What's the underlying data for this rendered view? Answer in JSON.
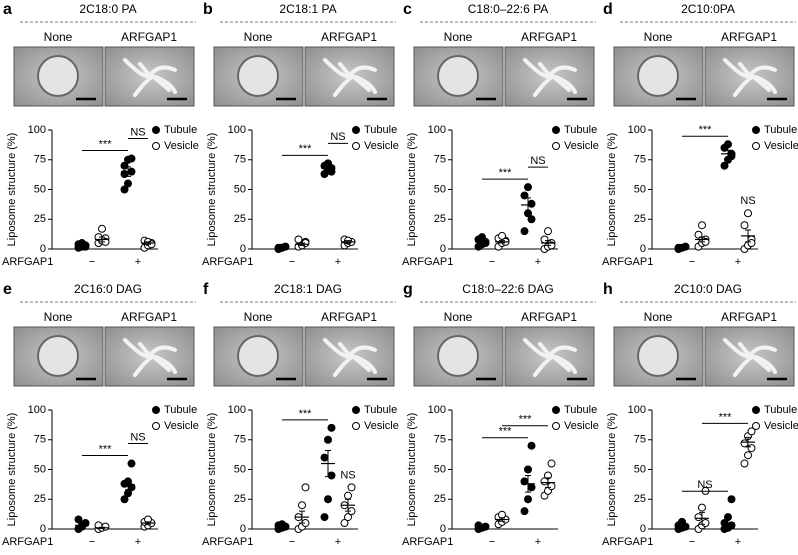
{
  "chart_data": [
    {
      "type": "strip",
      "letter": "a",
      "title": "2C18:0 PA",
      "images": [
        "None",
        "ARFGAP1"
      ],
      "ylabel": "Liposome structure (%)",
      "xlabel": "ARFGAP1",
      "categories": [
        "−",
        "+"
      ],
      "ylim": [
        0,
        100
      ],
      "yticks": [
        0,
        25,
        50,
        75,
        100
      ],
      "legend": "upper right",
      "series": [
        {
          "name": "Tubule",
          "color": "#000000",
          "marker": "filled",
          "values": [
            [
              1,
              2,
              3,
              4,
              5,
              2
            ],
            [
              50,
              55,
              65,
              70,
              75,
              76,
              63
            ]
          ],
          "means": [
            3,
            65
          ],
          "errors": [
            1,
            4
          ]
        },
        {
          "name": "Vesicle",
          "color": "#000000",
          "marker": "open",
          "values": [
            [
              5,
              7,
              9,
              10,
              17,
              6
            ],
            [
              1,
              3,
              5,
              7,
              6,
              4
            ]
          ],
          "means": [
            8,
            5
          ],
          "errors": [
            2,
            1
          ]
        }
      ],
      "comparisons": [
        {
          "label": "***",
          "groups": [
            [
              0,
              0
            ],
            [
              1,
              0
            ]
          ]
        },
        {
          "label": "NS",
          "groups": [
            [
              1,
              0
            ],
            [
              1,
              1
            ]
          ]
        }
      ]
    },
    {
      "type": "strip",
      "letter": "b",
      "title": "2C18:1 PA",
      "images": [
        "None",
        "ARFGAP1"
      ],
      "ylabel": "Liposome structure (%)",
      "xlabel": "ARFGAP1",
      "categories": [
        "−",
        "+"
      ],
      "ylim": [
        0,
        100
      ],
      "yticks": [
        0,
        25,
        50,
        75,
        100
      ],
      "legend": "upper right",
      "series": [
        {
          "name": "Tubule",
          "color": "#000000",
          "marker": "filled",
          "values": [
            [
              0,
              1,
              2,
              1,
              1
            ],
            [
              63,
              66,
              68,
              70,
              72,
              65
            ]
          ],
          "means": [
            1,
            68
          ],
          "errors": [
            0.5,
            1.5
          ]
        },
        {
          "name": "Vesicle",
          "color": "#000000",
          "marker": "open",
          "values": [
            [
              2,
              4,
              6,
              8,
              3,
              5
            ],
            [
              3,
              5,
              6,
              8,
              7
            ]
          ],
          "means": [
            4,
            6
          ],
          "errors": [
            1,
            1
          ]
        }
      ],
      "comparisons": [
        {
          "label": "***",
          "groups": [
            [
              0,
              0
            ],
            [
              1,
              0
            ]
          ]
        },
        {
          "label": "NS",
          "groups": [
            [
              1,
              0
            ],
            [
              1,
              1
            ]
          ]
        }
      ]
    },
    {
      "type": "strip",
      "letter": "c",
      "title": "C18:0–22:6 PA",
      "images": [
        "None",
        "ARFGAP1"
      ],
      "ylabel": "Liposome structure (%)",
      "xlabel": "ARFGAP1",
      "categories": [
        "−",
        "+"
      ],
      "ylim": [
        0,
        100
      ],
      "yticks": [
        0,
        25,
        50,
        75,
        100
      ],
      "legend": "upper right",
      "series": [
        {
          "name": "Tubule",
          "color": "#000000",
          "marker": "filled",
          "values": [
            [
              2,
              4,
              6,
              8,
              10,
              5
            ],
            [
              15,
              30,
              38,
              45,
              52,
              25
            ]
          ],
          "means": [
            6,
            37
          ],
          "errors": [
            1,
            6
          ]
        },
        {
          "name": "Vesicle",
          "color": "#000000",
          "marker": "open",
          "values": [
            [
              2,
              5,
              7,
              9,
              11,
              6
            ],
            [
              0,
              2,
              5,
              8,
              15,
              3
            ]
          ],
          "means": [
            6,
            5
          ],
          "errors": [
            1,
            2
          ]
        }
      ],
      "comparisons": [
        {
          "label": "***",
          "groups": [
            [
              0,
              0
            ],
            [
              1,
              0
            ]
          ]
        },
        {
          "label": "NS",
          "groups": [
            [
              1,
              0
            ],
            [
              1,
              1
            ]
          ]
        }
      ]
    },
    {
      "type": "strip",
      "letter": "d",
      "title": "2C10:0PA",
      "images": [
        "None",
        "ARFGAP1"
      ],
      "ylabel": "Liposome structure (%)",
      "xlabel": "ARFGAP1",
      "categories": [
        "−",
        "+"
      ],
      "ylim": [
        0,
        100
      ],
      "yticks": [
        0,
        25,
        50,
        75,
        100
      ],
      "legend": "upper right",
      "series": [
        {
          "name": "Tubule",
          "color": "#000000",
          "marker": "filled",
          "values": [
            [
              0,
              1,
              2,
              1
            ],
            [
              70,
              75,
              80,
              85,
              88,
              78
            ]
          ],
          "means": [
            1,
            80
          ],
          "errors": [
            0.5,
            3
          ]
        },
        {
          "name": "Vesicle",
          "color": "#000000",
          "marker": "open",
          "values": [
            [
              2,
              5,
              8,
              12,
              20,
              6
            ],
            [
              0,
              3,
              8,
              20,
              30,
              5
            ]
          ],
          "means": [
            8,
            11
          ],
          "errors": [
            2,
            5
          ]
        }
      ],
      "comparisons": [
        {
          "label": "***",
          "groups": [
            [
              0,
              0
            ],
            [
              1,
              0
            ]
          ]
        },
        {
          "label": "NS",
          "groups": [
            [
              1,
              1
            ]
          ]
        }
      ]
    },
    {
      "type": "strip",
      "letter": "e",
      "title": "2C16:0 DAG",
      "images": [
        "None",
        "ARFGAP1"
      ],
      "ylabel": "Liposome structure (%)",
      "xlabel": "ARFGAP1",
      "categories": [
        "−",
        "+"
      ],
      "ylim": [
        0,
        100
      ],
      "yticks": [
        0,
        25,
        50,
        75,
        100
      ],
      "legend": "upper right",
      "series": [
        {
          "name": "Tubule",
          "color": "#000000",
          "marker": "filled",
          "values": [
            [
              0,
              2,
              5,
              8,
              3
            ],
            [
              25,
              30,
              35,
              38,
              40,
              55
            ]
          ],
          "means": [
            3,
            37
          ],
          "errors": [
            1.5,
            4
          ]
        },
        {
          "name": "Vesicle",
          "color": "#000000",
          "marker": "open",
          "values": [
            [
              0,
              1,
              2,
              3
            ],
            [
              2,
              3,
              5,
              6,
              8
            ]
          ],
          "means": [
            1,
            5
          ],
          "errors": [
            0.5,
            1
          ]
        }
      ],
      "comparisons": [
        {
          "label": "***",
          "groups": [
            [
              0,
              0
            ],
            [
              1,
              0
            ]
          ]
        },
        {
          "label": "NS",
          "groups": [
            [
              1,
              0
            ],
            [
              1,
              1
            ]
          ]
        }
      ]
    },
    {
      "type": "strip",
      "letter": "f",
      "title": "2C18:1 DAG",
      "images": [
        "None",
        "ARFGAP1"
      ],
      "ylabel": "Liposome structure (%)",
      "xlabel": "ARFGAP1",
      "categories": [
        "−",
        "+"
      ],
      "ylim": [
        0,
        100
      ],
      "yticks": [
        0,
        25,
        50,
        75,
        100
      ],
      "legend": "upper right",
      "series": [
        {
          "name": "Tubule",
          "color": "#000000",
          "marker": "filled",
          "values": [
            [
              0,
              1,
              2,
              3,
              4
            ],
            [
              10,
              25,
              45,
              60,
              75,
              85
            ]
          ],
          "means": [
            2,
            55
          ],
          "errors": [
            1,
            11
          ]
        },
        {
          "name": "Vesicle",
          "color": "#000000",
          "marker": "open",
          "values": [
            [
              0,
              2,
              5,
              10,
              20,
              35
            ],
            [
              5,
              10,
              15,
              20,
              28,
              35
            ]
          ],
          "means": [
            10,
            20
          ],
          "errors": [
            5,
            5
          ]
        }
      ],
      "comparisons": [
        {
          "label": "***",
          "groups": [
            [
              0,
              0
            ],
            [
              1,
              0
            ]
          ]
        },
        {
          "label": "NS",
          "groups": [
            [
              1,
              1
            ]
          ]
        }
      ]
    },
    {
      "type": "strip",
      "letter": "g",
      "title": "C18:0–22:6 DAG",
      "images": [
        "None",
        "ARFGAP1"
      ],
      "ylabel": "Liposome structure (%)",
      "xlabel": "ARFGAP1",
      "categories": [
        "−",
        "+"
      ],
      "ylim": [
        0,
        100
      ],
      "yticks": [
        0,
        25,
        50,
        75,
        100
      ],
      "legend": "upper right",
      "series": [
        {
          "name": "Tubule",
          "color": "#000000",
          "marker": "filled",
          "values": [
            [
              0,
              1,
              2,
              3
            ],
            [
              15,
              25,
              35,
              40,
              50,
              70
            ]
          ],
          "means": [
            1,
            38
          ],
          "errors": [
            0.5,
            7
          ]
        },
        {
          "name": "Vesicle",
          "color": "#000000",
          "marker": "open",
          "values": [
            [
              4,
              6,
              8,
              10,
              12
            ],
            [
              28,
              32,
              36,
              40,
              45,
              55
            ]
          ],
          "means": [
            8,
            39
          ],
          "errors": [
            1.5,
            4
          ]
        }
      ],
      "comparisons": [
        {
          "label": "***",
          "groups": [
            [
              0,
              0
            ],
            [
              1,
              0
            ]
          ]
        },
        {
          "label": "***",
          "groups": [
            [
              0,
              1
            ],
            [
              1,
              1
            ]
          ]
        }
      ]
    },
    {
      "type": "strip",
      "letter": "h",
      "title": "2C10:0 DAG",
      "images": [
        "None",
        "ARFGAP1"
      ],
      "ylabel": "Liposome structure (%)",
      "xlabel": "ARFGAP1",
      "categories": [
        "−",
        "+"
      ],
      "ylim": [
        0,
        100
      ],
      "yticks": [
        0,
        25,
        50,
        75,
        100
      ],
      "legend": "upper right",
      "series": [
        {
          "name": "Tubule",
          "color": "#000000",
          "marker": "filled",
          "values": [
            [
              0,
              1,
              2,
              3,
              6
            ],
            [
              0,
              1,
              3,
              5,
              10,
              25
            ]
          ],
          "means": [
            2,
            5
          ],
          "errors": [
            1,
            4
          ]
        },
        {
          "name": "Vesicle",
          "color": "#000000",
          "marker": "open",
          "values": [
            [
              0,
              3,
              5,
              10,
              18,
              32
            ],
            [
              55,
              62,
              68,
              72,
              78,
              82
            ]
          ],
          "means": [
            9,
            73
          ],
          "errors": [
            5,
            4
          ]
        }
      ],
      "comparisons": [
        {
          "label": "NS",
          "groups": [
            [
              0,
              0
            ],
            [
              1,
              0
            ]
          ]
        },
        {
          "label": "***",
          "groups": [
            [
              0,
              1
            ],
            [
              1,
              1
            ]
          ]
        }
      ]
    }
  ]
}
